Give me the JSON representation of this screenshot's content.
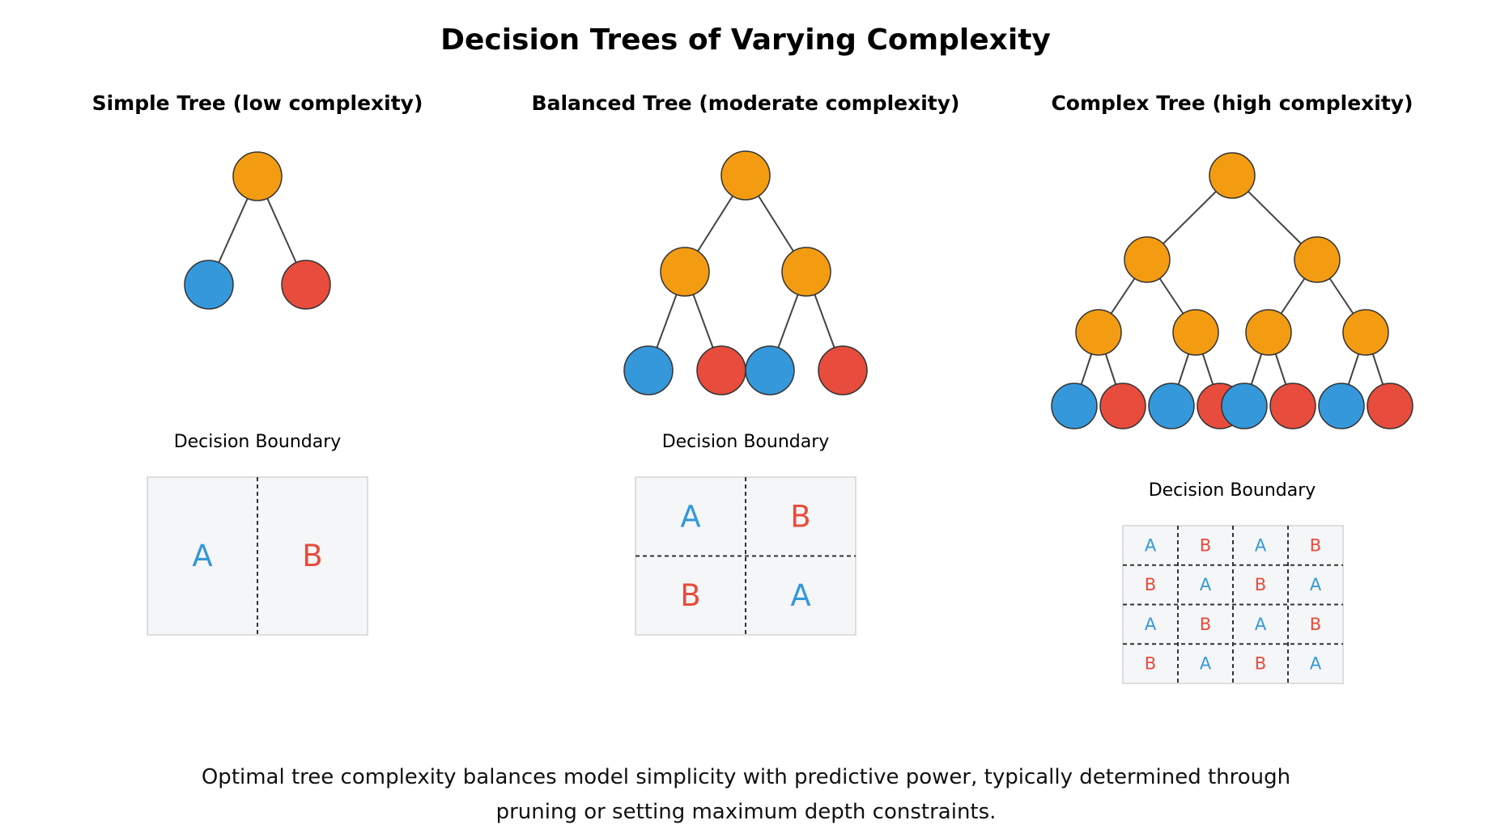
{
  "title": "Decision Trees of Varying Complexity",
  "colors": {
    "internal": "#f39c12",
    "classA": "#3498db",
    "classB": "#e74c3c",
    "edge": "#444444",
    "box_bg": "#f5f6f8",
    "box_border": "#dddddd"
  },
  "panels": [
    {
      "title": "Simple Tree (low complexity)",
      "depth": 1,
      "leaf_classes": [
        "A",
        "B"
      ],
      "boundary_label": "Decision Boundary",
      "grid": [
        [
          "A",
          "B"
        ]
      ]
    },
    {
      "title": "Balanced Tree (moderate complexity)",
      "depth": 2,
      "leaf_classes": [
        "A",
        "B",
        "A",
        "B"
      ],
      "boundary_label": "Decision Boundary",
      "grid": [
        [
          "A",
          "B"
        ],
        [
          "B",
          "A"
        ]
      ]
    },
    {
      "title": "Complex Tree (high complexity)",
      "depth": 3,
      "leaf_classes": [
        "A",
        "B",
        "A",
        "B",
        "A",
        "B",
        "A",
        "B"
      ],
      "boundary_label": "Decision Boundary",
      "grid": [
        [
          "A",
          "B",
          "A",
          "B"
        ],
        [
          "B",
          "A",
          "B",
          "A"
        ],
        [
          "A",
          "B",
          "A",
          "B"
        ],
        [
          "B",
          "A",
          "B",
          "A"
        ]
      ]
    }
  ],
  "caption": "Optimal tree complexity balances model simplicity with predictive power, typically determined through pruning or setting maximum depth constraints."
}
